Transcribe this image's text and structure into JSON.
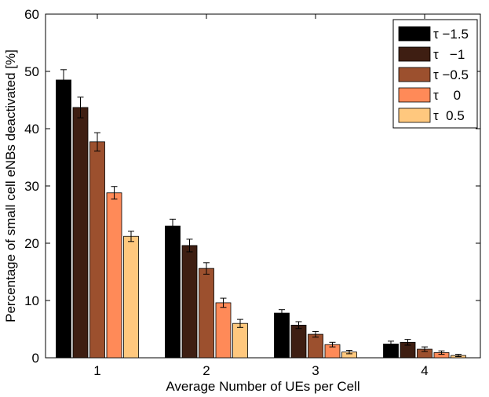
{
  "chart_data": {
    "type": "bar",
    "title": "",
    "xlabel": "Average Number of UEs per Cell",
    "ylabel": "Percentage of small cell eNBs deactivated [%]",
    "ylim": [
      0,
      60
    ],
    "yticks": [
      0,
      10,
      20,
      30,
      40,
      50,
      60
    ],
    "categories": [
      "1",
      "2",
      "3",
      "4"
    ],
    "grid": false,
    "legend_position": "top-right",
    "series": [
      {
        "name": "τ −1.5",
        "color": "#000000",
        "values": [
          48.5,
          23.0,
          7.8,
          2.4
        ],
        "errors": [
          1.8,
          1.2,
          0.6,
          0.5
        ]
      },
      {
        "name": "τ   −1",
        "color": "#3e1e12",
        "values": [
          43.7,
          19.6,
          5.7,
          2.7
        ],
        "errors": [
          1.8,
          1.1,
          0.6,
          0.5
        ]
      },
      {
        "name": "τ −0.5",
        "color": "#9c502e",
        "values": [
          37.7,
          15.6,
          4.1,
          1.5
        ],
        "errors": [
          1.6,
          1.0,
          0.5,
          0.4
        ]
      },
      {
        "name": "τ    0",
        "color": "#ff8a58",
        "values": [
          28.8,
          9.6,
          2.3,
          0.9
        ],
        "errors": [
          1.1,
          0.8,
          0.4,
          0.3
        ]
      },
      {
        "name": "τ  0.5",
        "color": "#ffc87e",
        "values": [
          21.2,
          6.0,
          1.0,
          0.4
        ],
        "errors": [
          0.9,
          0.7,
          0.3,
          0.2
        ]
      }
    ]
  }
}
